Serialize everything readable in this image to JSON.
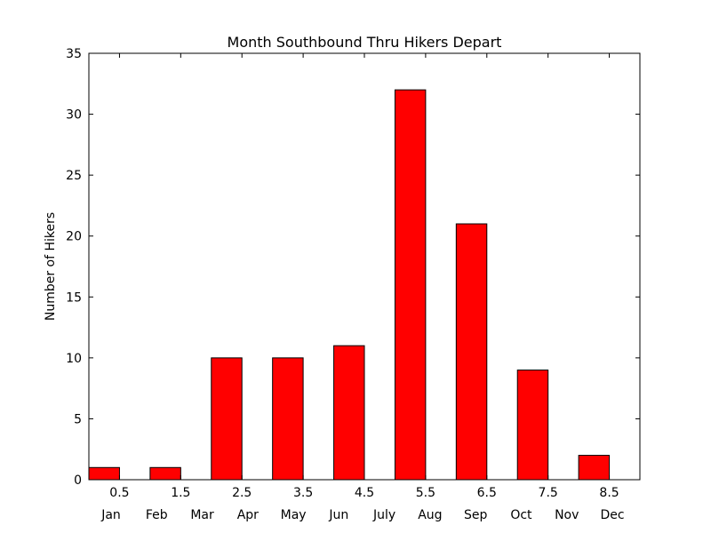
{
  "chart_data": {
    "type": "bar",
    "title": "Month Southbound Thru Hikers Depart",
    "xlabel": "",
    "ylabel": "Number of Hikers",
    "bar_color": "#ff0000",
    "edge_color": "#000000",
    "grid": false,
    "ylim": [
      0,
      35
    ],
    "xlim": [
      0,
      9
    ],
    "yticks": [
      0,
      5,
      10,
      15,
      20,
      25,
      30,
      35
    ],
    "xticks": [
      0.5,
      1.5,
      2.5,
      3.5,
      4.5,
      5.5,
      6.5,
      7.5,
      8.5
    ],
    "x": [
      0,
      1,
      2,
      3,
      4,
      5,
      6,
      7,
      8
    ],
    "values": [
      1,
      1,
      10,
      10,
      11,
      32,
      21,
      9,
      2
    ],
    "bar_width": 0.5,
    "months": [
      "Jan",
      "Feb",
      "Mar",
      "Apr",
      "May",
      "Jun",
      "July",
      "Aug",
      "Sep",
      "Oct",
      "Nov",
      "Dec"
    ]
  }
}
